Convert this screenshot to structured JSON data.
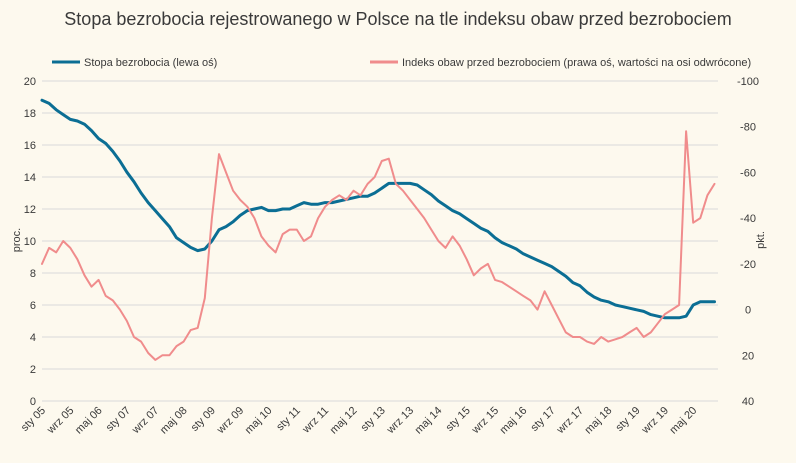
{
  "chart_data": {
    "type": "line",
    "title": "Stopa bezrobocia rejestrowanego w Polsce na tle indeksu obaw przed bezrobociem",
    "ylabel_left": "proc.",
    "ylabel_right": "pkt.",
    "ylim_left": [
      0,
      20
    ],
    "ylim_right": [
      -100,
      40
    ],
    "right_axis_reversed": true,
    "grid": true,
    "legend_position": "top",
    "x_tick_labels": [
      "sty 05",
      "wrz 05",
      "maj 06",
      "sty 07",
      "wrz 07",
      "maj 08",
      "sty 09",
      "wrz 09",
      "maj 10",
      "sty 11",
      "wrz 11",
      "maj 12",
      "sty 13",
      "wrz 13",
      "maj 14",
      "sty 15",
      "wrz 15",
      "maj 16",
      "sty 17",
      "wrz 17",
      "maj 18",
      "sty 19",
      "wrz 19",
      "maj 20"
    ],
    "left_ticks": [
      0,
      2,
      4,
      6,
      8,
      10,
      12,
      14,
      16,
      18,
      20
    ],
    "right_ticks": [
      40,
      20,
      0,
      -20,
      -40,
      -60,
      -80,
      -100
    ],
    "series": [
      {
        "name": "Stopa bezrobocia (lewa oś)",
        "axis": "left",
        "color": "#0b6e94",
        "points": [
          [
            "2005-01",
            18.8
          ],
          [
            "2005-03",
            18.6
          ],
          [
            "2005-05",
            18.2
          ],
          [
            "2005-07",
            17.9
          ],
          [
            "2005-09",
            17.6
          ],
          [
            "2005-11",
            17.5
          ],
          [
            "2006-01",
            17.3
          ],
          [
            "2006-03",
            16.9
          ],
          [
            "2006-05",
            16.4
          ],
          [
            "2006-07",
            16.1
          ],
          [
            "2006-09",
            15.6
          ],
          [
            "2006-11",
            15.0
          ],
          [
            "2007-01",
            14.3
          ],
          [
            "2007-03",
            13.7
          ],
          [
            "2007-05",
            13.0
          ],
          [
            "2007-07",
            12.4
          ],
          [
            "2007-09",
            11.9
          ],
          [
            "2007-11",
            11.4
          ],
          [
            "2008-01",
            10.9
          ],
          [
            "2008-03",
            10.2
          ],
          [
            "2008-05",
            9.9
          ],
          [
            "2008-07",
            9.6
          ],
          [
            "2008-09",
            9.4
          ],
          [
            "2008-11",
            9.5
          ],
          [
            "2009-01",
            10.0
          ],
          [
            "2009-03",
            10.7
          ],
          [
            "2009-05",
            10.9
          ],
          [
            "2009-07",
            11.2
          ],
          [
            "2009-09",
            11.6
          ],
          [
            "2009-11",
            11.9
          ],
          [
            "2010-01",
            12.0
          ],
          [
            "2010-03",
            12.1
          ],
          [
            "2010-05",
            11.9
          ],
          [
            "2010-07",
            11.9
          ],
          [
            "2010-09",
            12.0
          ],
          [
            "2010-11",
            12.0
          ],
          [
            "2011-01",
            12.2
          ],
          [
            "2011-03",
            12.4
          ],
          [
            "2011-05",
            12.3
          ],
          [
            "2011-07",
            12.3
          ],
          [
            "2011-09",
            12.4
          ],
          [
            "2011-11",
            12.4
          ],
          [
            "2012-01",
            12.5
          ],
          [
            "2012-03",
            12.6
          ],
          [
            "2012-05",
            12.7
          ],
          [
            "2012-07",
            12.8
          ],
          [
            "2012-09",
            12.8
          ],
          [
            "2012-11",
            13.0
          ],
          [
            "2013-01",
            13.3
          ],
          [
            "2013-03",
            13.6
          ],
          [
            "2013-05",
            13.6
          ],
          [
            "2013-07",
            13.6
          ],
          [
            "2013-09",
            13.6
          ],
          [
            "2013-11",
            13.5
          ],
          [
            "2014-01",
            13.2
          ],
          [
            "2014-03",
            12.9
          ],
          [
            "2014-05",
            12.5
          ],
          [
            "2014-07",
            12.2
          ],
          [
            "2014-09",
            11.9
          ],
          [
            "2014-11",
            11.7
          ],
          [
            "2015-01",
            11.4
          ],
          [
            "2015-03",
            11.1
          ],
          [
            "2015-05",
            10.8
          ],
          [
            "2015-07",
            10.6
          ],
          [
            "2015-09",
            10.2
          ],
          [
            "2015-11",
            9.9
          ],
          [
            "2016-01",
            9.7
          ],
          [
            "2016-03",
            9.5
          ],
          [
            "2016-05",
            9.2
          ],
          [
            "2016-07",
            9.0
          ],
          [
            "2016-09",
            8.8
          ],
          [
            "2016-11",
            8.6
          ],
          [
            "2017-01",
            8.4
          ],
          [
            "2017-03",
            8.1
          ],
          [
            "2017-05",
            7.8
          ],
          [
            "2017-07",
            7.4
          ],
          [
            "2017-09",
            7.2
          ],
          [
            "2017-11",
            6.8
          ],
          [
            "2018-01",
            6.5
          ],
          [
            "2018-03",
            6.3
          ],
          [
            "2018-05",
            6.2
          ],
          [
            "2018-07",
            6.0
          ],
          [
            "2018-09",
            5.9
          ],
          [
            "2018-11",
            5.8
          ],
          [
            "2019-01",
            5.7
          ],
          [
            "2019-03",
            5.6
          ],
          [
            "2019-05",
            5.4
          ],
          [
            "2019-07",
            5.3
          ],
          [
            "2019-09",
            5.2
          ],
          [
            "2019-11",
            5.2
          ],
          [
            "2020-01",
            5.2
          ],
          [
            "2020-03",
            5.3
          ],
          [
            "2020-05",
            6.0
          ],
          [
            "2020-07",
            6.2
          ],
          [
            "2020-09",
            6.2
          ],
          [
            "2020-11",
            6.2
          ]
        ]
      },
      {
        "name": "Indeks obaw przed bezrobociem (prawa oś, wartości na osi odwrócone)",
        "axis": "right",
        "color": "#f08c8c",
        "points": [
          [
            "2005-01",
            -20
          ],
          [
            "2005-03",
            -27
          ],
          [
            "2005-05",
            -25
          ],
          [
            "2005-07",
            -30
          ],
          [
            "2005-09",
            -27
          ],
          [
            "2005-11",
            -22
          ],
          [
            "2006-01",
            -15
          ],
          [
            "2006-03",
            -10
          ],
          [
            "2006-05",
            -13
          ],
          [
            "2006-07",
            -6
          ],
          [
            "2006-09",
            -4
          ],
          [
            "2006-11",
            0
          ],
          [
            "2007-01",
            5
          ],
          [
            "2007-03",
            12
          ],
          [
            "2007-05",
            14
          ],
          [
            "2007-07",
            19
          ],
          [
            "2007-09",
            22
          ],
          [
            "2007-11",
            20
          ],
          [
            "2008-01",
            20
          ],
          [
            "2008-03",
            16
          ],
          [
            "2008-05",
            14
          ],
          [
            "2008-07",
            9
          ],
          [
            "2008-09",
            8
          ],
          [
            "2008-11",
            -5
          ],
          [
            "2009-01",
            -40
          ],
          [
            "2009-03",
            -68
          ],
          [
            "2009-05",
            -60
          ],
          [
            "2009-07",
            -52
          ],
          [
            "2009-09",
            -48
          ],
          [
            "2009-11",
            -45
          ],
          [
            "2010-01",
            -40
          ],
          [
            "2010-03",
            -32
          ],
          [
            "2010-05",
            -28
          ],
          [
            "2010-07",
            -25
          ],
          [
            "2010-09",
            -33
          ],
          [
            "2010-11",
            -35
          ],
          [
            "2011-01",
            -35
          ],
          [
            "2011-03",
            -30
          ],
          [
            "2011-05",
            -32
          ],
          [
            "2011-07",
            -40
          ],
          [
            "2011-09",
            -45
          ],
          [
            "2011-11",
            -48
          ],
          [
            "2012-01",
            -50
          ],
          [
            "2012-03",
            -48
          ],
          [
            "2012-05",
            -52
          ],
          [
            "2012-07",
            -50
          ],
          [
            "2012-09",
            -55
          ],
          [
            "2012-11",
            -58
          ],
          [
            "2013-01",
            -65
          ],
          [
            "2013-03",
            -66
          ],
          [
            "2013-05",
            -55
          ],
          [
            "2013-07",
            -52
          ],
          [
            "2013-09",
            -48
          ],
          [
            "2013-11",
            -44
          ],
          [
            "2014-01",
            -40
          ],
          [
            "2014-03",
            -35
          ],
          [
            "2014-05",
            -30
          ],
          [
            "2014-07",
            -27
          ],
          [
            "2014-09",
            -32
          ],
          [
            "2014-11",
            -28
          ],
          [
            "2015-01",
            -22
          ],
          [
            "2015-03",
            -15
          ],
          [
            "2015-05",
            -18
          ],
          [
            "2015-07",
            -20
          ],
          [
            "2015-09",
            -13
          ],
          [
            "2015-11",
            -12
          ],
          [
            "2016-01",
            -10
          ],
          [
            "2016-03",
            -8
          ],
          [
            "2016-05",
            -6
          ],
          [
            "2016-07",
            -4
          ],
          [
            "2016-09",
            0
          ],
          [
            "2016-11",
            -8
          ],
          [
            "2017-01",
            -2
          ],
          [
            "2017-03",
            4
          ],
          [
            "2017-05",
            10
          ],
          [
            "2017-07",
            12
          ],
          [
            "2017-09",
            12
          ],
          [
            "2017-11",
            14
          ],
          [
            "2018-01",
            15
          ],
          [
            "2018-03",
            12
          ],
          [
            "2018-05",
            14
          ],
          [
            "2018-07",
            13
          ],
          [
            "2018-09",
            12
          ],
          [
            "2018-11",
            10
          ],
          [
            "2019-01",
            8
          ],
          [
            "2019-03",
            12
          ],
          [
            "2019-05",
            10
          ],
          [
            "2019-07",
            6
          ],
          [
            "2019-09",
            2
          ],
          [
            "2019-11",
            0
          ],
          [
            "2020-01",
            -2
          ],
          [
            "2020-03",
            -78
          ],
          [
            "2020-05",
            -38
          ],
          [
            "2020-07",
            -40
          ],
          [
            "2020-09",
            -50
          ],
          [
            "2020-11",
            -55
          ]
        ]
      }
    ]
  }
}
